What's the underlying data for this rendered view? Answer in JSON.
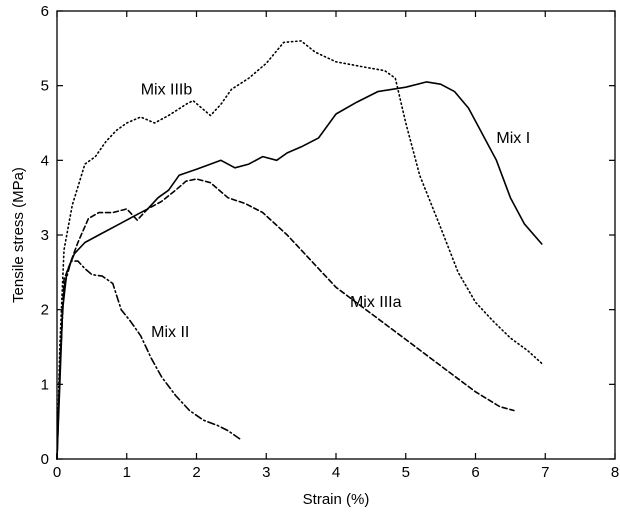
{
  "chart_data": {
    "type": "line",
    "xlabel": "Strain (%)",
    "ylabel": "Tensile stress (MPa)",
    "xlim": [
      0,
      8
    ],
    "ylim": [
      0,
      6
    ],
    "x_ticks": [
      0,
      1,
      2,
      3,
      4,
      5,
      6,
      7,
      8
    ],
    "y_ticks": [
      0,
      1,
      2,
      3,
      4,
      5,
      6
    ],
    "grid": false,
    "legend": "none (series labelled inline)",
    "series": [
      {
        "name": "Mix I",
        "line_style": "solid",
        "label_at": [
          6.3,
          4.3
        ],
        "points": [
          [
            0,
            0
          ],
          [
            0.04,
            1.0
          ],
          [
            0.08,
            2.0
          ],
          [
            0.14,
            2.5
          ],
          [
            0.25,
            2.75
          ],
          [
            0.4,
            2.9
          ],
          [
            0.6,
            3.0
          ],
          [
            0.9,
            3.15
          ],
          [
            1.1,
            3.25
          ],
          [
            1.3,
            3.35
          ],
          [
            1.45,
            3.5
          ],
          [
            1.6,
            3.6
          ],
          [
            1.75,
            3.8
          ],
          [
            2.0,
            3.88
          ],
          [
            2.2,
            3.95
          ],
          [
            2.35,
            4.0
          ],
          [
            2.55,
            3.9
          ],
          [
            2.75,
            3.95
          ],
          [
            2.95,
            4.05
          ],
          [
            3.15,
            4.0
          ],
          [
            3.3,
            4.1
          ],
          [
            3.5,
            4.18
          ],
          [
            3.75,
            4.3
          ],
          [
            4.0,
            4.62
          ],
          [
            4.3,
            4.78
          ],
          [
            4.6,
            4.92
          ],
          [
            5.0,
            4.98
          ],
          [
            5.3,
            5.05
          ],
          [
            5.5,
            5.02
          ],
          [
            5.7,
            4.92
          ],
          [
            5.9,
            4.7
          ],
          [
            6.1,
            4.35
          ],
          [
            6.3,
            4.0
          ],
          [
            6.5,
            3.5
          ],
          [
            6.7,
            3.15
          ],
          [
            6.95,
            2.88
          ]
        ]
      },
      {
        "name": "Mix II",
        "line_style": "dash-dot",
        "label_at": [
          1.35,
          1.7
        ],
        "points": [
          [
            0,
            0
          ],
          [
            0.04,
            1.2
          ],
          [
            0.1,
            2.3
          ],
          [
            0.2,
            2.65
          ],
          [
            0.3,
            2.65
          ],
          [
            0.4,
            2.55
          ],
          [
            0.5,
            2.47
          ],
          [
            0.65,
            2.45
          ],
          [
            0.8,
            2.35
          ],
          [
            0.92,
            2.0
          ],
          [
            1.05,
            1.85
          ],
          [
            1.2,
            1.65
          ],
          [
            1.35,
            1.35
          ],
          [
            1.5,
            1.1
          ],
          [
            1.7,
            0.85
          ],
          [
            1.9,
            0.65
          ],
          [
            2.1,
            0.52
          ],
          [
            2.3,
            0.45
          ],
          [
            2.45,
            0.38
          ],
          [
            2.62,
            0.27
          ]
        ]
      },
      {
        "name": "Mix IIIa",
        "line_style": "dashed",
        "label_at": [
          4.2,
          2.1
        ],
        "points": [
          [
            0,
            0
          ],
          [
            0.04,
            1.2
          ],
          [
            0.1,
            2.4
          ],
          [
            0.2,
            2.65
          ],
          [
            0.3,
            2.9
          ],
          [
            0.45,
            3.22
          ],
          [
            0.6,
            3.3
          ],
          [
            0.8,
            3.3
          ],
          [
            1.0,
            3.35
          ],
          [
            1.15,
            3.2
          ],
          [
            1.3,
            3.35
          ],
          [
            1.5,
            3.45
          ],
          [
            1.7,
            3.6
          ],
          [
            1.85,
            3.72
          ],
          [
            2.0,
            3.75
          ],
          [
            2.2,
            3.7
          ],
          [
            2.45,
            3.5
          ],
          [
            2.7,
            3.42
          ],
          [
            2.95,
            3.3
          ],
          [
            3.3,
            3.0
          ],
          [
            3.6,
            2.7
          ],
          [
            4.0,
            2.3
          ],
          [
            4.5,
            1.95
          ],
          [
            5.0,
            1.6
          ],
          [
            5.5,
            1.25
          ],
          [
            6.0,
            0.9
          ],
          [
            6.35,
            0.7
          ],
          [
            6.55,
            0.65
          ]
        ]
      },
      {
        "name": "Mix IIIb",
        "line_style": "dotted",
        "label_at": [
          1.2,
          4.95
        ],
        "points": [
          [
            0,
            0
          ],
          [
            0.04,
            1.5
          ],
          [
            0.1,
            2.8
          ],
          [
            0.22,
            3.4
          ],
          [
            0.4,
            3.95
          ],
          [
            0.55,
            4.05
          ],
          [
            0.7,
            4.25
          ],
          [
            0.85,
            4.4
          ],
          [
            1.0,
            4.5
          ],
          [
            1.2,
            4.58
          ],
          [
            1.4,
            4.5
          ],
          [
            1.6,
            4.6
          ],
          [
            1.85,
            4.75
          ],
          [
            1.95,
            4.8
          ],
          [
            2.05,
            4.72
          ],
          [
            2.2,
            4.6
          ],
          [
            2.35,
            4.75
          ],
          [
            2.5,
            4.95
          ],
          [
            2.75,
            5.1
          ],
          [
            3.0,
            5.3
          ],
          [
            3.25,
            5.58
          ],
          [
            3.5,
            5.6
          ],
          [
            3.7,
            5.45
          ],
          [
            4.0,
            5.32
          ],
          [
            4.4,
            5.25
          ],
          [
            4.7,
            5.2
          ],
          [
            4.85,
            5.1
          ],
          [
            5.0,
            4.5
          ],
          [
            5.2,
            3.8
          ],
          [
            5.5,
            3.1
          ],
          [
            5.75,
            2.5
          ],
          [
            6.0,
            2.1
          ],
          [
            6.25,
            1.85
          ],
          [
            6.5,
            1.62
          ],
          [
            6.75,
            1.45
          ],
          [
            6.95,
            1.28
          ]
        ]
      }
    ]
  }
}
